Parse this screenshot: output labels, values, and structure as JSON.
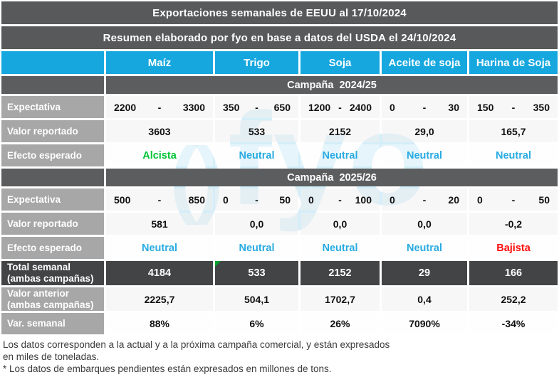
{
  "header": {
    "title": "Exportaciones semanales de EEUU al 17/10/2024",
    "subtitle": "Resumen elaborado por fyo en base a datos del USDA el 24/10/2024"
  },
  "columns": [
    "Maíz",
    "Trigo",
    "Soja",
    "Aceite de soja",
    "Harina de Soja"
  ],
  "row_labels": {
    "expectativa": "Expectativa",
    "valor_reportado": "Valor reportado",
    "efecto_esperado": "Efecto esperado",
    "total_semanal": "Total semanal (ambas campañas)",
    "valor_anterior": "Valor anterior (ambas campañas)",
    "var_semanal": "Var. semanal",
    "range_separator": "-"
  },
  "sections": [
    {
      "campaign": "Campaña  2024/25",
      "expectativa": [
        {
          "min": "2200",
          "max": "3300"
        },
        {
          "min": "350",
          "max": "650"
        },
        {
          "min": "1200",
          "max": "2400"
        },
        {
          "min": "0",
          "max": "30"
        },
        {
          "min": "150",
          "max": "350"
        }
      ],
      "valor_reportado": [
        "3603",
        "533",
        "2152",
        "29,0",
        "165,7"
      ],
      "efecto_esperado": [
        {
          "label": "Alcista",
          "tone": "up"
        },
        {
          "label": "Neutral",
          "tone": "neutral"
        },
        {
          "label": "Neutral",
          "tone": "neutral"
        },
        {
          "label": "Neutral",
          "tone": "neutral"
        },
        {
          "label": "Neutral",
          "tone": "neutral"
        }
      ]
    },
    {
      "campaign": "Campaña  2025/26",
      "expectativa": [
        {
          "min": "500",
          "max": "850"
        },
        {
          "min": "0",
          "max": "50"
        },
        {
          "min": "0",
          "max": "100"
        },
        {
          "min": "0",
          "max": "20"
        },
        {
          "min": "0",
          "max": "50"
        }
      ],
      "valor_reportado": [
        "581",
        "0,0",
        "0,0",
        "0,0",
        "-0,2"
      ],
      "efecto_esperado": [
        {
          "label": "Neutral",
          "tone": "neutral"
        },
        {
          "label": "Neutral",
          "tone": "neutral"
        },
        {
          "label": "Neutral",
          "tone": "neutral"
        },
        {
          "label": "Neutral",
          "tone": "neutral"
        },
        {
          "label": "Bajista",
          "tone": "down"
        }
      ]
    }
  ],
  "totals": {
    "total_semanal": [
      "4184",
      "533",
      "2152",
      "29",
      "166"
    ],
    "valor_anterior": [
      "2225,7",
      "504,1",
      "1702,7",
      "0,4",
      "252,2"
    ],
    "var_semanal": [
      "88%",
      "6%",
      "26%",
      "7090%",
      "-34%"
    ]
  },
  "footnotes": [
    "Los datos corresponden a la actual y a la próxima campaña comercial, y están expresados",
    "en miles de toneladas.",
    "* Los datos de embarques pendientes están expresados en millones de tons."
  ],
  "watermark": {
    "parens": "()",
    "word": "fyo"
  },
  "colors": {
    "header_bar": "#58595B",
    "column_header_cyan": "#16A7DF",
    "campaign_bar": "#5C5D5F",
    "row_label_gray": "#A7A7A7",
    "total_row_dark": "#434446",
    "alcista_green": "#00C437",
    "neutral_cyan": "#29ABE2",
    "bajista_red": "#FF0D0D",
    "note_marker_green": "#00A32E",
    "watermark_cyan": "#BDE5F5"
  }
}
